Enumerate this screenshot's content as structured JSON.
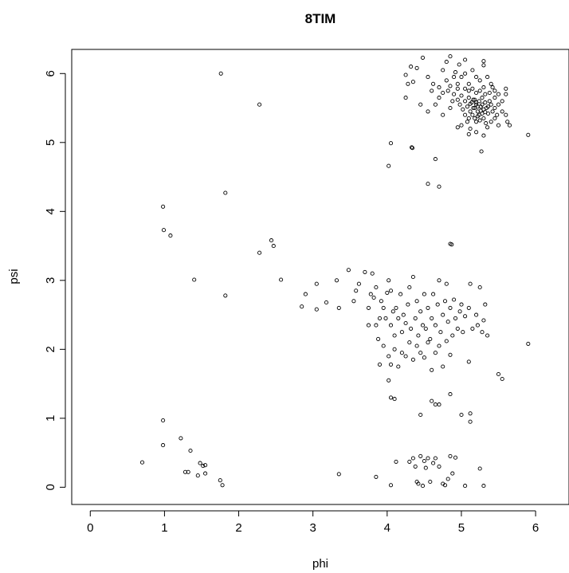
{
  "chart_data": {
    "type": "scatter",
    "title": "8TIM",
    "xlabel": "phi",
    "ylabel": "psi",
    "xlim": [
      -0.25,
      6.45
    ],
    "ylim": [
      -0.25,
      6.35
    ],
    "xticks": [
      0,
      1,
      2,
      3,
      4,
      5,
      6
    ],
    "yticks": [
      0,
      1,
      2,
      3,
      4,
      5,
      6
    ],
    "grid": false,
    "marker": "open-circle",
    "series": [
      {
        "points": [
          [
            1.76,
            6.0
          ],
          [
            2.28,
            5.55
          ],
          [
            1.82,
            4.27
          ],
          [
            0.98,
            4.07
          ],
          [
            0.99,
            3.73
          ],
          [
            1.08,
            3.65
          ],
          [
            2.44,
            3.58
          ],
          [
            2.47,
            3.5
          ],
          [
            2.28,
            3.4
          ],
          [
            1.4,
            3.01
          ],
          [
            2.57,
            3.01
          ],
          [
            1.82,
            2.78
          ],
          [
            4.02,
            4.66
          ],
          [
            4.05,
            4.99
          ],
          [
            4.33,
            4.93
          ],
          [
            4.34,
            4.92
          ],
          [
            4.65,
            4.76
          ],
          [
            4.55,
            4.4
          ],
          [
            4.7,
            4.36
          ],
          [
            5.9,
            5.11
          ],
          [
            4.48,
            6.23
          ],
          [
            4.32,
            6.1
          ],
          [
            4.4,
            6.08
          ],
          [
            4.8,
            6.17
          ],
          [
            4.85,
            6.25
          ],
          [
            4.97,
            6.13
          ],
          [
            5.05,
            6.2
          ],
          [
            5.3,
            6.18
          ],
          [
            5.3,
            6.12
          ],
          [
            4.25,
            5.98
          ],
          [
            4.28,
            5.85
          ],
          [
            4.35,
            5.88
          ],
          [
            4.55,
            5.95
          ],
          [
            4.62,
            5.85
          ],
          [
            4.6,
            5.75
          ],
          [
            4.7,
            5.8
          ],
          [
            4.75,
            5.72
          ],
          [
            4.75,
            6.05
          ],
          [
            4.8,
            5.9
          ],
          [
            4.82,
            5.75
          ],
          [
            4.9,
            5.95
          ],
          [
            4.92,
            6.02
          ],
          [
            4.95,
            5.85
          ],
          [
            5.0,
            5.95
          ],
          [
            5.05,
            6.0
          ],
          [
            5.1,
            5.85
          ],
          [
            5.15,
            6.05
          ],
          [
            5.2,
            5.95
          ],
          [
            5.25,
            5.9
          ],
          [
            5.3,
            5.8
          ],
          [
            5.35,
            5.95
          ],
          [
            5.4,
            5.85
          ],
          [
            5.45,
            5.75
          ],
          [
            5.5,
            5.7
          ],
          [
            5.6,
            5.78
          ],
          [
            4.25,
            5.65
          ],
          [
            4.45,
            5.55
          ],
          [
            4.55,
            5.45
          ],
          [
            4.65,
            5.55
          ],
          [
            4.7,
            5.65
          ],
          [
            4.75,
            5.4
          ],
          [
            4.85,
            5.5
          ],
          [
            4.88,
            5.6
          ],
          [
            4.95,
            5.62
          ],
          [
            4.98,
            5.55
          ],
          [
            5.0,
            5.68
          ],
          [
            5.02,
            5.48
          ],
          [
            5.05,
            5.6
          ],
          [
            5.08,
            5.52
          ],
          [
            5.1,
            5.65
          ],
          [
            5.12,
            5.45
          ],
          [
            5.14,
            5.58
          ],
          [
            5.16,
            5.5
          ],
          [
            5.18,
            5.62
          ],
          [
            5.2,
            5.55
          ],
          [
            5.22,
            5.45
          ],
          [
            5.24,
            5.6
          ],
          [
            5.26,
            5.52
          ],
          [
            5.28,
            5.65
          ],
          [
            5.3,
            5.48
          ],
          [
            5.32,
            5.58
          ],
          [
            5.34,
            5.5
          ],
          [
            5.36,
            5.42
          ],
          [
            5.38,
            5.6
          ],
          [
            5.4,
            5.55
          ],
          [
            5.42,
            5.45
          ],
          [
            5.45,
            5.5
          ],
          [
            5.48,
            5.4
          ],
          [
            5.5,
            5.55
          ],
          [
            5.55,
            5.45
          ],
          [
            5.6,
            5.4
          ],
          [
            5.62,
            5.3
          ],
          [
            5.65,
            5.25
          ],
          [
            5.15,
            5.4
          ],
          [
            5.18,
            5.35
          ],
          [
            5.2,
            5.3
          ],
          [
            5.22,
            5.38
          ],
          [
            5.25,
            5.32
          ],
          [
            5.28,
            5.42
          ],
          [
            5.3,
            5.35
          ],
          [
            5.33,
            5.28
          ],
          [
            5.35,
            5.22
          ],
          [
            5.4,
            5.3
          ],
          [
            5.45,
            5.35
          ],
          [
            5.5,
            5.25
          ],
          [
            5.05,
            5.4
          ],
          [
            5.08,
            5.3
          ],
          [
            5.1,
            5.35
          ],
          [
            5.12,
            5.2
          ],
          [
            5.0,
            5.25
          ],
          [
            5.1,
            5.12
          ],
          [
            5.2,
            5.15
          ],
          [
            5.3,
            5.1
          ],
          [
            5.27,
            4.87
          ],
          [
            4.95,
            5.22
          ],
          [
            5.55,
            5.6
          ],
          [
            5.6,
            5.7
          ],
          [
            5.45,
            5.65
          ],
          [
            5.42,
            5.8
          ],
          [
            5.38,
            5.72
          ],
          [
            5.32,
            5.7
          ],
          [
            5.25,
            5.75
          ],
          [
            5.2,
            5.72
          ],
          [
            5.15,
            5.78
          ],
          [
            5.1,
            5.75
          ],
          [
            5.05,
            5.78
          ],
          [
            4.9,
            5.7
          ],
          [
            4.95,
            5.78
          ],
          [
            4.85,
            5.82
          ],
          [
            5.18,
            5.5
          ],
          [
            5.22,
            5.52
          ],
          [
            5.26,
            5.46
          ],
          [
            5.24,
            5.4
          ],
          [
            5.28,
            5.55
          ],
          [
            5.32,
            5.44
          ],
          [
            5.36,
            5.52
          ],
          [
            5.2,
            5.58
          ],
          [
            5.16,
            5.62
          ],
          [
            5.12,
            5.56
          ],
          [
            2.85,
            2.62
          ],
          [
            2.9,
            2.8
          ],
          [
            3.05,
            2.95
          ],
          [
            3.05,
            2.58
          ],
          [
            3.18,
            2.68
          ],
          [
            3.32,
            3.0
          ],
          [
            3.35,
            2.6
          ],
          [
            3.48,
            3.15
          ],
          [
            3.55,
            2.7
          ],
          [
            3.58,
            2.85
          ],
          [
            3.62,
            2.95
          ],
          [
            3.7,
            3.12
          ],
          [
            3.75,
            2.35
          ],
          [
            3.75,
            2.6
          ],
          [
            3.78,
            2.8
          ],
          [
            3.8,
            3.1
          ],
          [
            3.82,
            2.75
          ],
          [
            3.85,
            2.35
          ],
          [
            3.88,
            2.15
          ],
          [
            3.85,
            2.9
          ],
          [
            3.9,
            2.45
          ],
          [
            3.92,
            2.7
          ],
          [
            3.95,
            2.6
          ],
          [
            3.98,
            2.45
          ],
          [
            4.0,
            2.82
          ],
          [
            4.02,
            3.0
          ],
          [
            4.05,
            2.85
          ],
          [
            4.05,
            2.35
          ],
          [
            4.08,
            2.55
          ],
          [
            4.1,
            2.2
          ],
          [
            4.12,
            2.6
          ],
          [
            4.15,
            2.45
          ],
          [
            4.18,
            2.8
          ],
          [
            4.2,
            2.25
          ],
          [
            4.22,
            2.5
          ],
          [
            4.25,
            2.38
          ],
          [
            4.28,
            2.65
          ],
          [
            4.3,
            2.9
          ],
          [
            4.32,
            2.3
          ],
          [
            4.35,
            3.05
          ],
          [
            4.38,
            2.45
          ],
          [
            4.4,
            2.7
          ],
          [
            4.42,
            2.2
          ],
          [
            4.45,
            2.55
          ],
          [
            4.48,
            2.35
          ],
          [
            4.5,
            2.8
          ],
          [
            4.52,
            2.3
          ],
          [
            4.55,
            2.6
          ],
          [
            4.58,
            2.15
          ],
          [
            4.6,
            2.45
          ],
          [
            4.62,
            2.8
          ],
          [
            4.65,
            2.35
          ],
          [
            4.68,
            2.65
          ],
          [
            4.7,
            3.0
          ],
          [
            4.72,
            2.25
          ],
          [
            4.75,
            2.5
          ],
          [
            4.78,
            2.7
          ],
          [
            4.8,
            2.95
          ],
          [
            4.82,
            2.4
          ],
          [
            4.85,
            2.6
          ],
          [
            4.88,
            2.2
          ],
          [
            4.9,
            2.72
          ],
          [
            4.92,
            2.45
          ],
          [
            4.95,
            2.3
          ],
          [
            4.98,
            2.55
          ],
          [
            5.0,
            2.65
          ],
          [
            5.02,
            2.25
          ],
          [
            5.05,
            2.48
          ],
          [
            5.1,
            2.6
          ],
          [
            5.12,
            2.95
          ],
          [
            5.15,
            2.3
          ],
          [
            5.2,
            2.5
          ],
          [
            5.22,
            2.35
          ],
          [
            5.25,
            2.9
          ],
          [
            5.28,
            2.25
          ],
          [
            5.3,
            2.42
          ],
          [
            5.35,
            2.2
          ],
          [
            5.32,
            2.65
          ],
          [
            3.95,
            2.05
          ],
          [
            4.02,
            1.9
          ],
          [
            4.05,
            1.78
          ],
          [
            3.9,
            1.78
          ],
          [
            4.1,
            2.0
          ],
          [
            4.15,
            1.75
          ],
          [
            4.2,
            1.95
          ],
          [
            4.25,
            1.9
          ],
          [
            4.3,
            2.1
          ],
          [
            4.35,
            1.85
          ],
          [
            4.4,
            2.05
          ],
          [
            4.45,
            1.95
          ],
          [
            4.5,
            1.88
          ],
          [
            4.55,
            2.1
          ],
          [
            4.6,
            1.7
          ],
          [
            4.65,
            1.95
          ],
          [
            4.7,
            2.05
          ],
          [
            4.75,
            1.75
          ],
          [
            4.8,
            2.12
          ],
          [
            4.85,
            1.92
          ],
          [
            5.1,
            1.82
          ],
          [
            4.05,
            1.3
          ],
          [
            4.1,
            1.28
          ],
          [
            4.02,
            1.55
          ],
          [
            4.45,
            1.05
          ],
          [
            4.6,
            1.25
          ],
          [
            4.65,
            1.2
          ],
          [
            4.7,
            1.2
          ],
          [
            4.85,
            1.35
          ],
          [
            5.0,
            1.05
          ],
          [
            5.12,
            1.07
          ],
          [
            5.12,
            0.95
          ],
          [
            5.5,
            1.64
          ],
          [
            5.55,
            1.57
          ],
          [
            5.9,
            2.08
          ],
          [
            4.85,
            3.53
          ],
          [
            4.87,
            3.52
          ],
          [
            0.7,
            0.36
          ],
          [
            0.98,
            0.97
          ],
          [
            0.98,
            0.61
          ],
          [
            1.22,
            0.71
          ],
          [
            1.28,
            0.22
          ],
          [
            1.32,
            0.22
          ],
          [
            1.35,
            0.53
          ],
          [
            1.45,
            0.17
          ],
          [
            1.48,
            0.35
          ],
          [
            1.52,
            0.31
          ],
          [
            1.55,
            0.32
          ],
          [
            1.55,
            0.2
          ],
          [
            1.75,
            0.1
          ],
          [
            1.78,
            0.03
          ],
          [
            3.35,
            0.19
          ],
          [
            3.85,
            0.15
          ],
          [
            4.05,
            0.03
          ],
          [
            4.12,
            0.37
          ],
          [
            4.3,
            0.37
          ],
          [
            4.35,
            0.42
          ],
          [
            4.38,
            0.3
          ],
          [
            4.4,
            0.08
          ],
          [
            4.42,
            0.05
          ],
          [
            4.45,
            0.45
          ],
          [
            4.48,
            0.02
          ],
          [
            4.5,
            0.38
          ],
          [
            4.52,
            0.28
          ],
          [
            4.55,
            0.42
          ],
          [
            4.58,
            0.08
          ],
          [
            4.62,
            0.35
          ],
          [
            4.65,
            0.42
          ],
          [
            4.7,
            0.3
          ],
          [
            4.75,
            0.05
          ],
          [
            4.78,
            0.03
          ],
          [
            4.82,
            0.12
          ],
          [
            4.85,
            0.45
          ],
          [
            4.88,
            0.2
          ],
          [
            4.92,
            0.43
          ],
          [
            5.05,
            0.02
          ],
          [
            5.25,
            0.27
          ],
          [
            5.3,
            0.02
          ]
        ]
      }
    ]
  }
}
